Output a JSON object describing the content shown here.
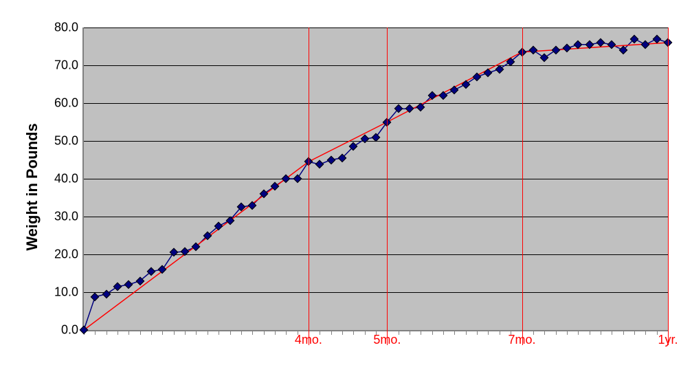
{
  "chart": {
    "type": "line-scatter",
    "y_axis_title": "Weight in Pounds",
    "title_fontsize": 22,
    "ylabel_fontsize": 18,
    "xlabel_fontsize": 18,
    "ylim": [
      0,
      80
    ],
    "ytick_step": 10,
    "ytick_decimals": 1,
    "x_count": 52,
    "plot_bg": "#c0c0c0",
    "page_bg": "#ffffff",
    "grid_color": "#000000",
    "axis_color": "#808080",
    "data_series": {
      "line_color": "#000080",
      "line_width": 1.5,
      "marker_shape": "diamond",
      "marker_color": "#000080",
      "marker_border": "#000000",
      "marker_size": 10,
      "values": [
        0.0,
        8.8,
        9.5,
        11.5,
        12.0,
        13.0,
        15.5,
        16.0,
        20.5,
        20.8,
        22.0,
        25.0,
        27.5,
        29.0,
        32.5,
        33.0,
        36.0,
        38.0,
        40.0,
        40.0,
        44.5,
        43.8,
        45.0,
        45.5,
        48.5,
        50.5,
        51.0,
        55.0,
        58.5,
        58.5,
        59.0,
        62.0,
        62.0,
        63.5,
        65.0,
        67.0,
        68.0,
        69.0,
        71.0,
        73.5,
        74.0,
        72.0,
        74.0,
        74.5,
        75.5,
        75.5,
        76.0,
        75.5,
        74.0,
        77.0,
        75.5,
        77.0,
        76.0
      ]
    },
    "trend_segments": {
      "color": "#ff0000",
      "width": 1.5,
      "points": [
        [
          0,
          0.0
        ],
        [
          20,
          44.5
        ],
        [
          27,
          55.0
        ],
        [
          39,
          73.5
        ],
        [
          52,
          76.0
        ]
      ]
    },
    "vertical_markers": {
      "color": "#ff0000",
      "width": 1.5,
      "lines": [
        {
          "x": 20,
          "label": "4mo."
        },
        {
          "x": 27,
          "label": "5mo."
        },
        {
          "x": 39,
          "label": "7mo."
        },
        {
          "x": 52,
          "label": "1yr."
        }
      ]
    }
  }
}
